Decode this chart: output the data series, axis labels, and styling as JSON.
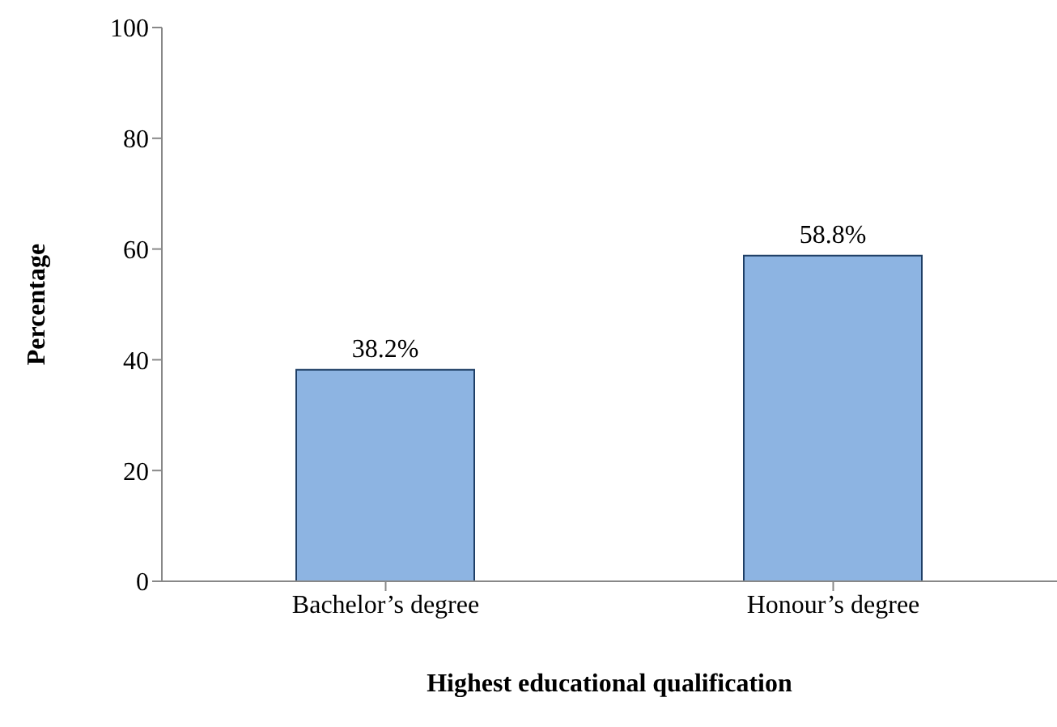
{
  "chart_data": {
    "type": "bar",
    "xlabel": "Highest educational qualification",
    "ylabel": "Percentage",
    "categories": [
      "Bachelor’s degree",
      "Honour’s degree"
    ],
    "values": [
      38.2,
      58.8
    ],
    "value_labels": [
      "38.2%",
      "58.8%"
    ],
    "color": "#8db4e2",
    "ylim": [
      0,
      100
    ],
    "yticks": [
      0,
      20,
      40,
      60,
      80,
      100
    ],
    "grid": false,
    "legend": false
  }
}
